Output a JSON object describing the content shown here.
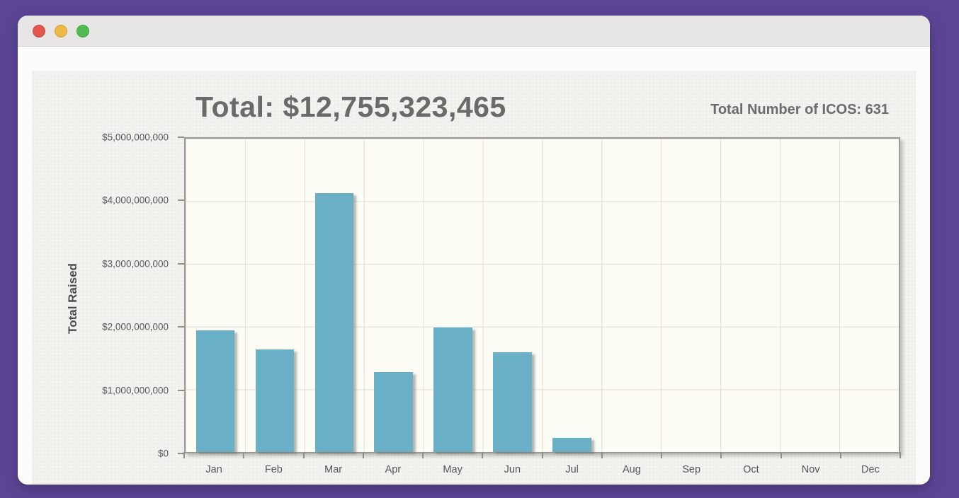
{
  "window": {
    "traffic_lights": {
      "close_color": "#e2574d",
      "minimize_color": "#eeb844",
      "zoom_color": "#50ba50"
    },
    "frame_color": "#5d4596",
    "titlebar_color": "#e8e6e4"
  },
  "header": {
    "title": "Total: $12,755,323,465",
    "ico_count": "Total Number of ICOS: 631"
  },
  "chart_data": {
    "type": "bar",
    "title": "Total: $12,755,323,465",
    "annotation": "Total Number of ICOS: 631",
    "categories": [
      "Jan",
      "Feb",
      "Mar",
      "Apr",
      "May",
      "Jun",
      "Jul",
      "Aug",
      "Sep",
      "Oct",
      "Nov",
      "Dec"
    ],
    "values": [
      1940000000,
      1640000000,
      4130000000,
      1270000000,
      1990000000,
      1590000000,
      230000000,
      0,
      0,
      0,
      0,
      0
    ],
    "xlabel": "",
    "ylabel": "Total Raised",
    "ylim": [
      0,
      5000000000
    ],
    "ytick_labels": [
      "$0",
      "$1,000,000,000",
      "$2,000,000,000",
      "$3,000,000,000",
      "$4,000,000,000",
      "$5,000,000,000"
    ],
    "grid": true,
    "legend": false,
    "bar_color": "#69b0c6",
    "plot_background": "#fdfcf5"
  }
}
